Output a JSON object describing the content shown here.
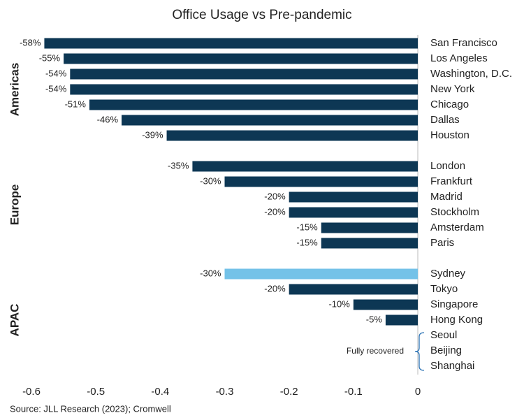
{
  "chart_data": {
    "type": "grouped-hbar",
    "title": "Office Usage vs Pre-pandemic",
    "source": "Source: JLL Research (2023); Cromwell",
    "annotation": "Fully recovered",
    "color": "#0d3754",
    "xlim": [
      -0.6,
      0
    ],
    "xticks": [
      -0.6,
      -0.5,
      -0.4,
      -0.3,
      -0.2,
      -0.1,
      0
    ],
    "groups": [
      {
        "name": "Americas",
        "categories": [
          "San Francisco",
          "Los Angeles",
          "Washington, D.C.",
          "New York",
          "Chicago",
          "Dallas",
          "Houston"
        ],
        "values": [
          -0.58,
          -0.55,
          -0.54,
          -0.54,
          -0.51,
          -0.46,
          -0.39
        ],
        "value_labels": [
          "-58%",
          "-55%",
          "-54%",
          "-54%",
          "-51%",
          "-46%",
          "-39%"
        ]
      },
      {
        "name": "Europe",
        "categories": [
          "London",
          "Frankfurt",
          "Madrid",
          "Stockholm",
          "Amsterdam",
          "Paris"
        ],
        "values": [
          -0.35,
          -0.3,
          -0.2,
          -0.2,
          -0.15,
          -0.15
        ],
        "value_labels": [
          "-35%",
          "-30%",
          "-20%",
          "-20%",
          "-15%",
          "-15%"
        ]
      },
      {
        "name": "APAC",
        "categories": [
          "Sydney",
          "Tokyo",
          "Singapore",
          "Hong Kong",
          "Seoul",
          "Beijing",
          "Shanghai"
        ],
        "values": [
          -0.3,
          -0.2,
          -0.1,
          -0.05,
          null,
          null,
          null
        ],
        "value_labels": [
          "-30%",
          "-20%",
          "-10%",
          "-5%",
          null,
          null,
          null
        ],
        "colors": [
          "#74c2e8",
          "#0d3754",
          "#0d3754",
          "#0d3754",
          null,
          null,
          null
        ]
      }
    ]
  }
}
